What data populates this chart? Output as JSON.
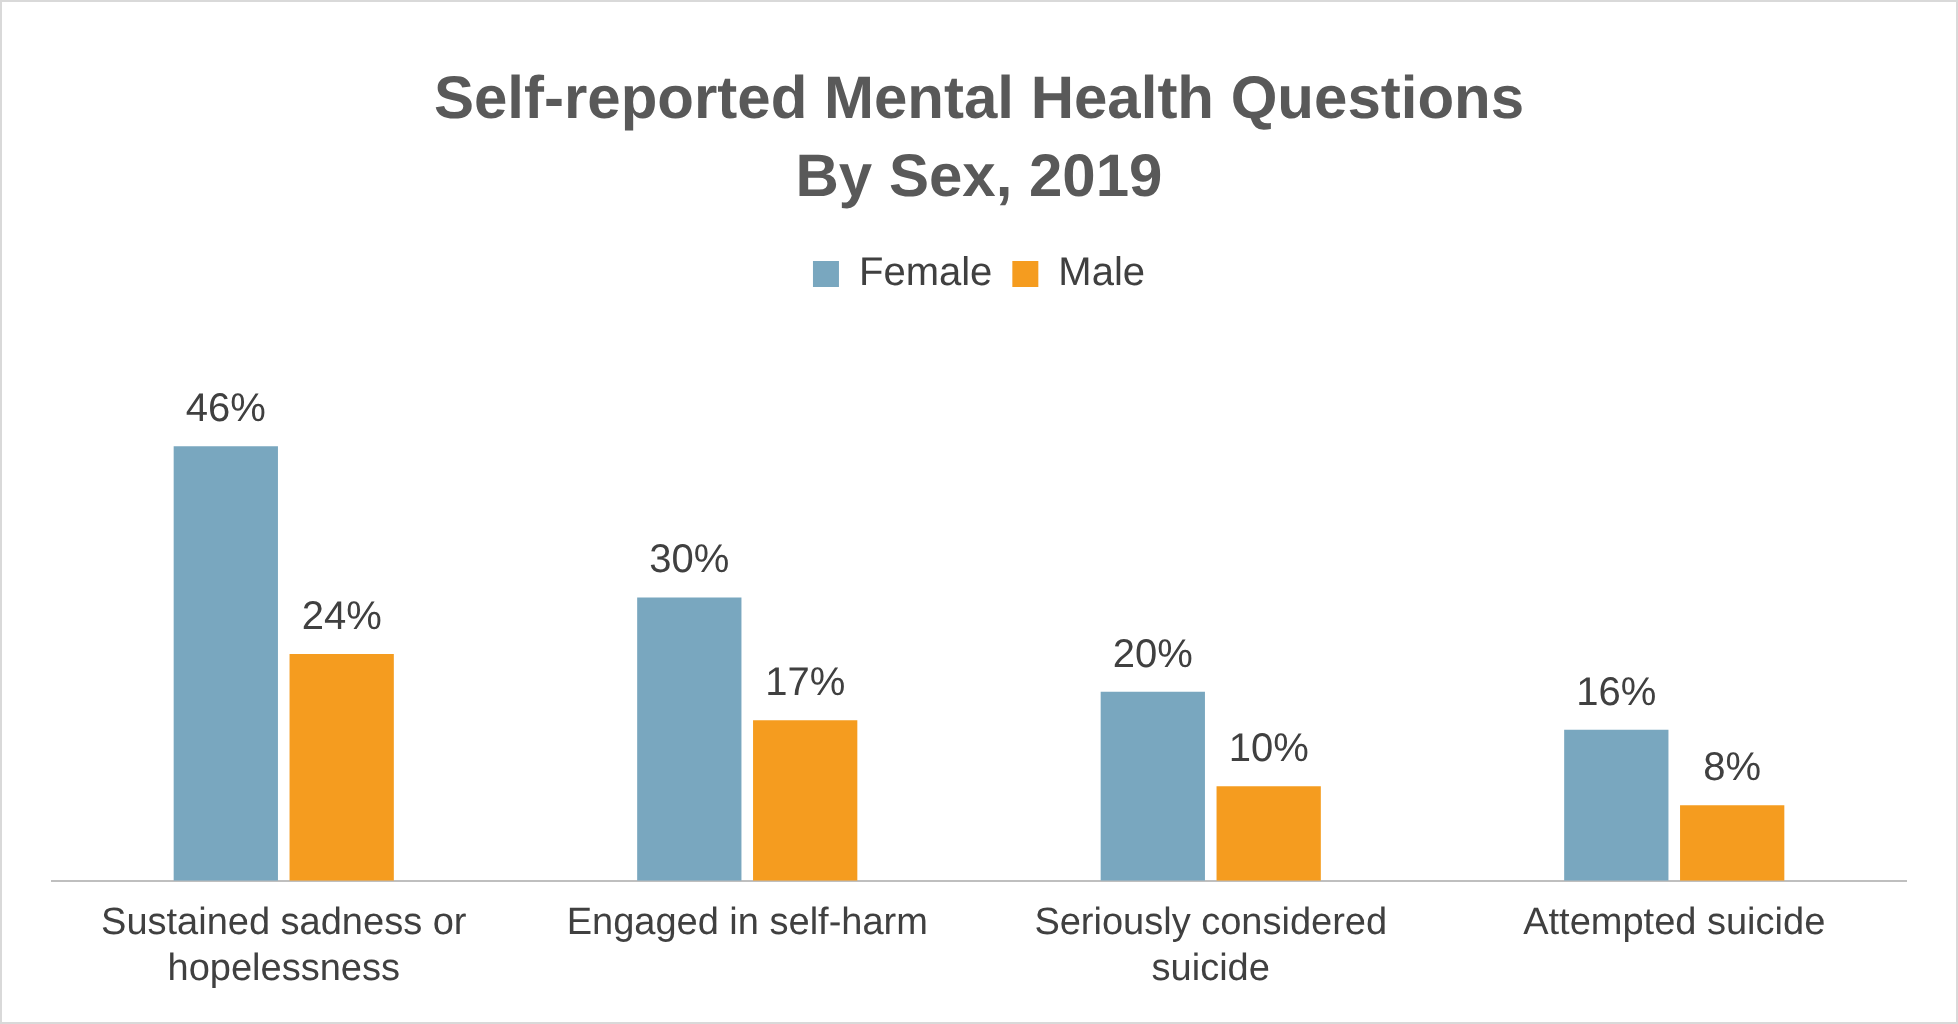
{
  "chart_data": {
    "type": "bar",
    "title": "Self-reported Mental Health Questions\nBy Sex, 2019",
    "categories": [
      "Sustained sadness or hopelessness",
      "Engaged in self-harm",
      "Seriously considered suicide",
      "Attempted suicide"
    ],
    "series": [
      {
        "name": "Female",
        "color": "#79a7bf",
        "values": [
          46,
          30,
          20,
          16
        ],
        "value_labels": [
          "46%",
          "30%",
          "20%",
          "16%"
        ]
      },
      {
        "name": "Male",
        "color": "#f59c1f",
        "values": [
          24,
          17,
          10,
          8
        ],
        "value_labels": [
          "24%",
          "17%",
          "10%",
          "8%"
        ]
      }
    ],
    "legend": "top",
    "grid": false
  }
}
